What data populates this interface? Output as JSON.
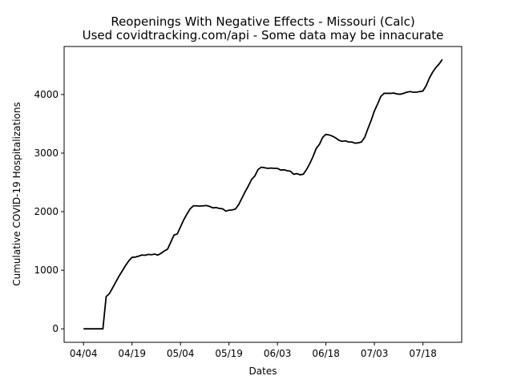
{
  "chart_data": {
    "type": "line",
    "title": "Reopenings With Negative Effects - Missouri (Calc)",
    "subtitle": "Used covidtracking.com/api - Some data may be innacurate",
    "x_label": "Dates",
    "y_label": "Cumulative COVID-19 Hospitalizations",
    "x": [
      "04/04",
      "04/05",
      "04/06",
      "04/07",
      "04/08",
      "04/09",
      "04/10",
      "04/11",
      "04/12",
      "04/13",
      "04/14",
      "04/15",
      "04/16",
      "04/17",
      "04/18",
      "04/19",
      "04/20",
      "04/21",
      "04/22",
      "04/23",
      "04/24",
      "04/25",
      "04/26",
      "04/27",
      "04/28",
      "04/29",
      "04/30",
      "05/01",
      "05/02",
      "05/03",
      "05/04",
      "05/05",
      "05/06",
      "05/07",
      "05/08",
      "05/09",
      "05/10",
      "05/11",
      "05/12",
      "05/13",
      "05/14",
      "05/15",
      "05/16",
      "05/17",
      "05/18",
      "05/19",
      "05/20",
      "05/21",
      "05/22",
      "05/23",
      "05/24",
      "05/25",
      "05/26",
      "05/27",
      "05/28",
      "05/29",
      "05/30",
      "05/31",
      "06/01",
      "06/02",
      "06/03",
      "06/04",
      "06/05",
      "06/06",
      "06/07",
      "06/08",
      "06/09",
      "06/10",
      "06/11",
      "06/12",
      "06/13",
      "06/14",
      "06/15",
      "06/16",
      "06/17",
      "06/18",
      "06/19",
      "06/20",
      "06/21",
      "06/22",
      "06/23",
      "06/24",
      "06/25",
      "06/26",
      "06/27",
      "06/28",
      "06/29",
      "06/30",
      "07/01",
      "07/02",
      "07/03",
      "07/04",
      "07/05",
      "07/06",
      "07/07",
      "07/08",
      "07/09",
      "07/10",
      "07/11",
      "07/12",
      "07/13",
      "07/14",
      "07/15",
      "07/16",
      "07/17",
      "07/18",
      "07/19",
      "07/20",
      "07/21",
      "07/22",
      "07/23",
      "07/24"
    ],
    "series": [
      {
        "name": "Hospitalizations",
        "color": "#000000",
        "values": [
          0,
          0,
          0,
          0,
          0,
          0,
          0,
          550,
          600,
          700,
          800,
          900,
          990,
          1080,
          1160,
          1220,
          1225,
          1240,
          1260,
          1255,
          1270,
          1265,
          1275,
          1260,
          1290,
          1330,
          1360,
          1480,
          1600,
          1620,
          1740,
          1860,
          1960,
          2050,
          2100,
          2100,
          2095,
          2100,
          2105,
          2090,
          2065,
          2070,
          2055,
          2050,
          2010,
          2025,
          2030,
          2045,
          2120,
          2230,
          2340,
          2440,
          2550,
          2610,
          2720,
          2760,
          2750,
          2740,
          2745,
          2740,
          2740,
          2710,
          2715,
          2700,
          2690,
          2640,
          2650,
          2630,
          2640,
          2720,
          2820,
          2940,
          3080,
          3150,
          3270,
          3320,
          3310,
          3290,
          3260,
          3220,
          3200,
          3210,
          3190,
          3190,
          3170,
          3175,
          3190,
          3270,
          3420,
          3560,
          3720,
          3840,
          3970,
          4020,
          4020,
          4020,
          4025,
          4010,
          4005,
          4020,
          4040,
          4050,
          4040,
          4040,
          4050,
          4060,
          4150,
          4280,
          4380,
          4460,
          4520,
          4600
        ]
      }
    ],
    "xlim": [
      "03/29",
      "07/30"
    ],
    "xticks": [
      "04/04",
      "04/19",
      "05/04",
      "05/19",
      "06/03",
      "06/18",
      "07/03",
      "07/18"
    ],
    "ylim": [
      -230,
      4820
    ],
    "yticks": [
      0,
      1000,
      2000,
      3000,
      4000
    ],
    "grid": false
  }
}
